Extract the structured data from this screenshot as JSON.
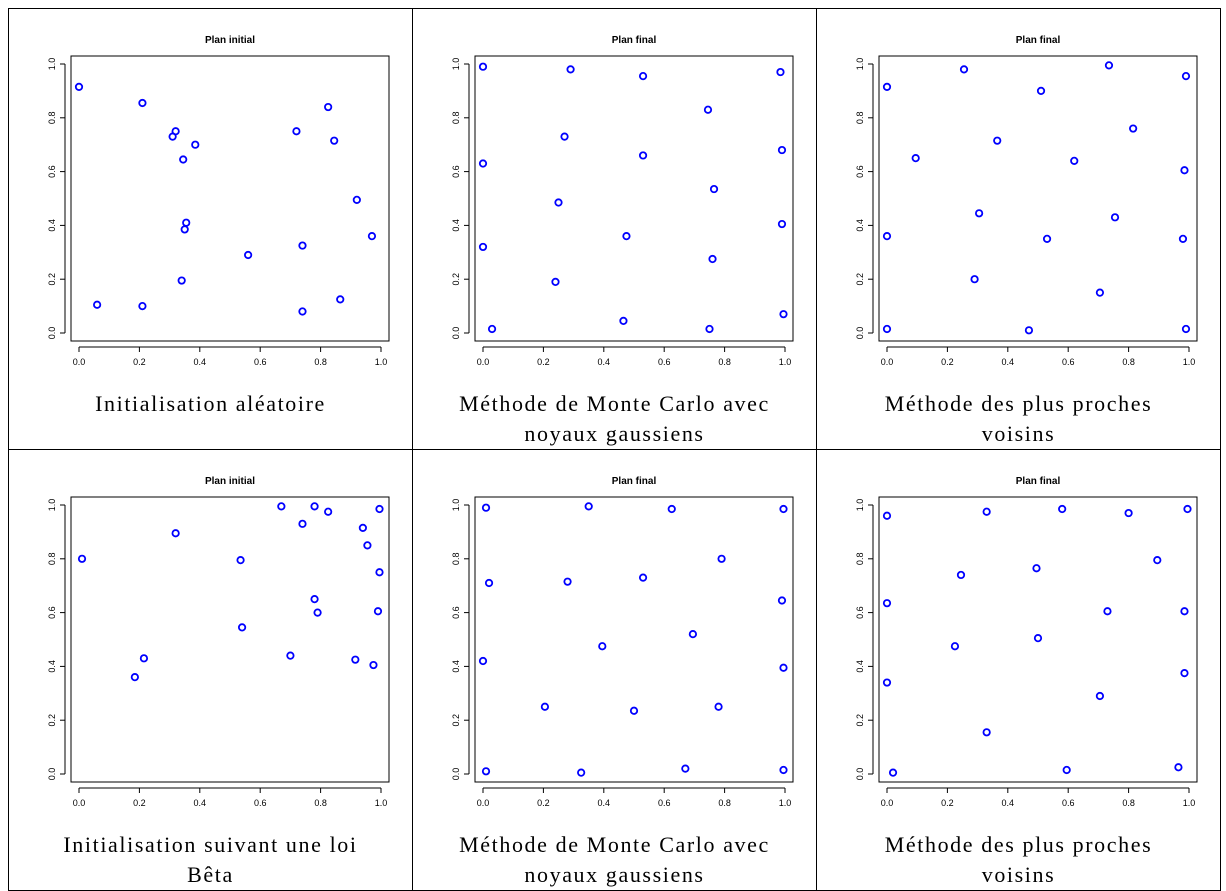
{
  "panels": [
    {
      "title": "Plan initial",
      "caption_lines": [
        "Initialisation aléatoire"
      ]
    },
    {
      "title": "Plan final",
      "caption_lines": [
        "Méthode de Monte Carlo avec",
        "noyaux gaussiens"
      ]
    },
    {
      "title": "Plan final",
      "caption_lines": [
        "Méthode des plus proches",
        "voisins"
      ]
    },
    {
      "title": "Plan initial",
      "caption_lines": [
        "Initialisation suivant une loi",
        "Bêta"
      ]
    },
    {
      "title": "Plan final",
      "caption_lines": [
        "Méthode de Monte Carlo avec",
        "noyaux gaussiens"
      ]
    },
    {
      "title": "Plan final",
      "caption_lines": [
        "Méthode des plus proches",
        "voisins"
      ]
    }
  ],
  "chart_data": [
    {
      "type": "scatter",
      "title": "Plan initial",
      "xlabel": "",
      "ylabel": "",
      "xlim": [
        0,
        1
      ],
      "ylim": [
        0,
        1
      ],
      "xticks": [
        "0.0",
        "0.2",
        "0.4",
        "0.6",
        "0.8",
        "1.0"
      ],
      "yticks": [
        "0.0",
        "0.2",
        "0.4",
        "0.6",
        "0.8",
        "1.0"
      ],
      "marker_color": "#0000ff",
      "grid": false,
      "points": [
        [
          0.0,
          0.915
        ],
        [
          0.21,
          0.855
        ],
        [
          0.31,
          0.73
        ],
        [
          0.32,
          0.75
        ],
        [
          0.345,
          0.645
        ],
        [
          0.385,
          0.7
        ],
        [
          0.72,
          0.75
        ],
        [
          0.825,
          0.84
        ],
        [
          0.845,
          0.715
        ],
        [
          0.92,
          0.495
        ],
        [
          0.355,
          0.41
        ],
        [
          0.35,
          0.385
        ],
        [
          0.56,
          0.29
        ],
        [
          0.74,
          0.325
        ],
        [
          0.97,
          0.36
        ],
        [
          0.34,
          0.195
        ],
        [
          0.06,
          0.105
        ],
        [
          0.21,
          0.1
        ],
        [
          0.865,
          0.125
        ],
        [
          0.74,
          0.08
        ]
      ]
    },
    {
      "type": "scatter",
      "title": "Plan final",
      "xlabel": "",
      "ylabel": "",
      "xlim": [
        0,
        1
      ],
      "ylim": [
        0,
        1
      ],
      "xticks": [
        "0.0",
        "0.2",
        "0.4",
        "0.6",
        "0.8",
        "1.0"
      ],
      "yticks": [
        "0.0",
        "0.2",
        "0.4",
        "0.6",
        "0.8",
        "1.0"
      ],
      "marker_color": "#0000ff",
      "grid": false,
      "points": [
        [
          0.0,
          0.99
        ],
        [
          0.29,
          0.98
        ],
        [
          0.53,
          0.955
        ],
        [
          0.985,
          0.97
        ],
        [
          0.745,
          0.83
        ],
        [
          0.27,
          0.73
        ],
        [
          0.53,
          0.66
        ],
        [
          0.0,
          0.63
        ],
        [
          0.99,
          0.68
        ],
        [
          0.765,
          0.535
        ],
        [
          0.25,
          0.485
        ],
        [
          0.475,
          0.36
        ],
        [
          0.99,
          0.405
        ],
        [
          0.0,
          0.32
        ],
        [
          0.76,
          0.275
        ],
        [
          0.24,
          0.19
        ],
        [
          0.465,
          0.045
        ],
        [
          0.03,
          0.015
        ],
        [
          0.75,
          0.015
        ],
        [
          0.995,
          0.07
        ]
      ]
    },
    {
      "type": "scatter",
      "title": "Plan final",
      "xlabel": "",
      "ylabel": "",
      "xlim": [
        0,
        1
      ],
      "ylim": [
        0,
        1
      ],
      "xticks": [
        "0.0",
        "0.2",
        "0.4",
        "0.6",
        "0.8",
        "1.0"
      ],
      "yticks": [
        "0.0",
        "0.2",
        "0.4",
        "0.6",
        "0.8",
        "1.0"
      ],
      "marker_color": "#0000ff",
      "grid": false,
      "points": [
        [
          0.0,
          0.915
        ],
        [
          0.255,
          0.98
        ],
        [
          0.735,
          0.995
        ],
        [
          0.99,
          0.955
        ],
        [
          0.51,
          0.9
        ],
        [
          0.365,
          0.715
        ],
        [
          0.815,
          0.76
        ],
        [
          0.095,
          0.65
        ],
        [
          0.62,
          0.64
        ],
        [
          0.985,
          0.605
        ],
        [
          0.305,
          0.445
        ],
        [
          0.755,
          0.43
        ],
        [
          0.0,
          0.36
        ],
        [
          0.53,
          0.35
        ],
        [
          0.98,
          0.35
        ],
        [
          0.29,
          0.2
        ],
        [
          0.705,
          0.15
        ],
        [
          0.0,
          0.015
        ],
        [
          0.47,
          0.01
        ],
        [
          0.99,
          0.015
        ]
      ]
    },
    {
      "type": "scatter",
      "title": "Plan initial",
      "xlabel": "",
      "ylabel": "",
      "xlim": [
        0,
        1
      ],
      "ylim": [
        0,
        1
      ],
      "xticks": [
        "0.0",
        "0.2",
        "0.4",
        "0.6",
        "0.8",
        "1.0"
      ],
      "yticks": [
        "0.0",
        "0.2",
        "0.4",
        "0.6",
        "0.8",
        "1.0"
      ],
      "marker_color": "#0000ff",
      "grid": false,
      "points": [
        [
          0.01,
          0.8
        ],
        [
          0.32,
          0.895
        ],
        [
          0.67,
          0.995
        ],
        [
          0.78,
          0.995
        ],
        [
          0.995,
          0.985
        ],
        [
          0.74,
          0.93
        ],
        [
          0.825,
          0.975
        ],
        [
          0.94,
          0.915
        ],
        [
          0.955,
          0.85
        ],
        [
          0.535,
          0.795
        ],
        [
          0.995,
          0.75
        ],
        [
          0.78,
          0.65
        ],
        [
          0.79,
          0.6
        ],
        [
          0.99,
          0.605
        ],
        [
          0.54,
          0.545
        ],
        [
          0.215,
          0.43
        ],
        [
          0.185,
          0.36
        ],
        [
          0.7,
          0.44
        ],
        [
          0.915,
          0.425
        ],
        [
          0.975,
          0.405
        ]
      ]
    },
    {
      "type": "scatter",
      "title": "Plan final",
      "xlabel": "",
      "ylabel": "",
      "xlim": [
        0,
        1
      ],
      "ylim": [
        0,
        1
      ],
      "xticks": [
        "0.0",
        "0.2",
        "0.4",
        "0.6",
        "0.8",
        "1.0"
      ],
      "yticks": [
        "0.0",
        "0.2",
        "0.4",
        "0.6",
        "0.8",
        "1.0"
      ],
      "marker_color": "#0000ff",
      "grid": false,
      "points": [
        [
          0.01,
          0.99
        ],
        [
          0.35,
          0.995
        ],
        [
          0.625,
          0.985
        ],
        [
          0.995,
          0.985
        ],
        [
          0.02,
          0.71
        ],
        [
          0.28,
          0.715
        ],
        [
          0.53,
          0.73
        ],
        [
          0.79,
          0.8
        ],
        [
          0.99,
          0.645
        ],
        [
          0.395,
          0.475
        ],
        [
          0.695,
          0.52
        ],
        [
          0.0,
          0.42
        ],
        [
          0.995,
          0.395
        ],
        [
          0.205,
          0.25
        ],
        [
          0.5,
          0.235
        ],
        [
          0.78,
          0.25
        ],
        [
          0.01,
          0.01
        ],
        [
          0.325,
          0.005
        ],
        [
          0.67,
          0.02
        ],
        [
          0.995,
          0.015
        ]
      ]
    },
    {
      "type": "scatter",
      "title": "Plan final",
      "xlabel": "",
      "ylabel": "",
      "xlim": [
        0,
        1
      ],
      "ylim": [
        0,
        1
      ],
      "xticks": [
        "0.0",
        "0.2",
        "0.4",
        "0.6",
        "0.8",
        "1.0"
      ],
      "yticks": [
        "0.0",
        "0.2",
        "0.4",
        "0.6",
        "0.8",
        "1.0"
      ],
      "marker_color": "#0000ff",
      "grid": false,
      "points": [
        [
          0.0,
          0.96
        ],
        [
          0.33,
          0.975
        ],
        [
          0.58,
          0.985
        ],
        [
          0.8,
          0.97
        ],
        [
          0.995,
          0.985
        ],
        [
          0.245,
          0.74
        ],
        [
          0.495,
          0.765
        ],
        [
          0.895,
          0.795
        ],
        [
          0.0,
          0.635
        ],
        [
          0.73,
          0.605
        ],
        [
          0.985,
          0.605
        ],
        [
          0.225,
          0.475
        ],
        [
          0.5,
          0.505
        ],
        [
          0.0,
          0.34
        ],
        [
          0.705,
          0.29
        ],
        [
          0.985,
          0.375
        ],
        [
          0.33,
          0.155
        ],
        [
          0.02,
          0.005
        ],
        [
          0.595,
          0.015
        ],
        [
          0.965,
          0.025
        ]
      ]
    }
  ]
}
